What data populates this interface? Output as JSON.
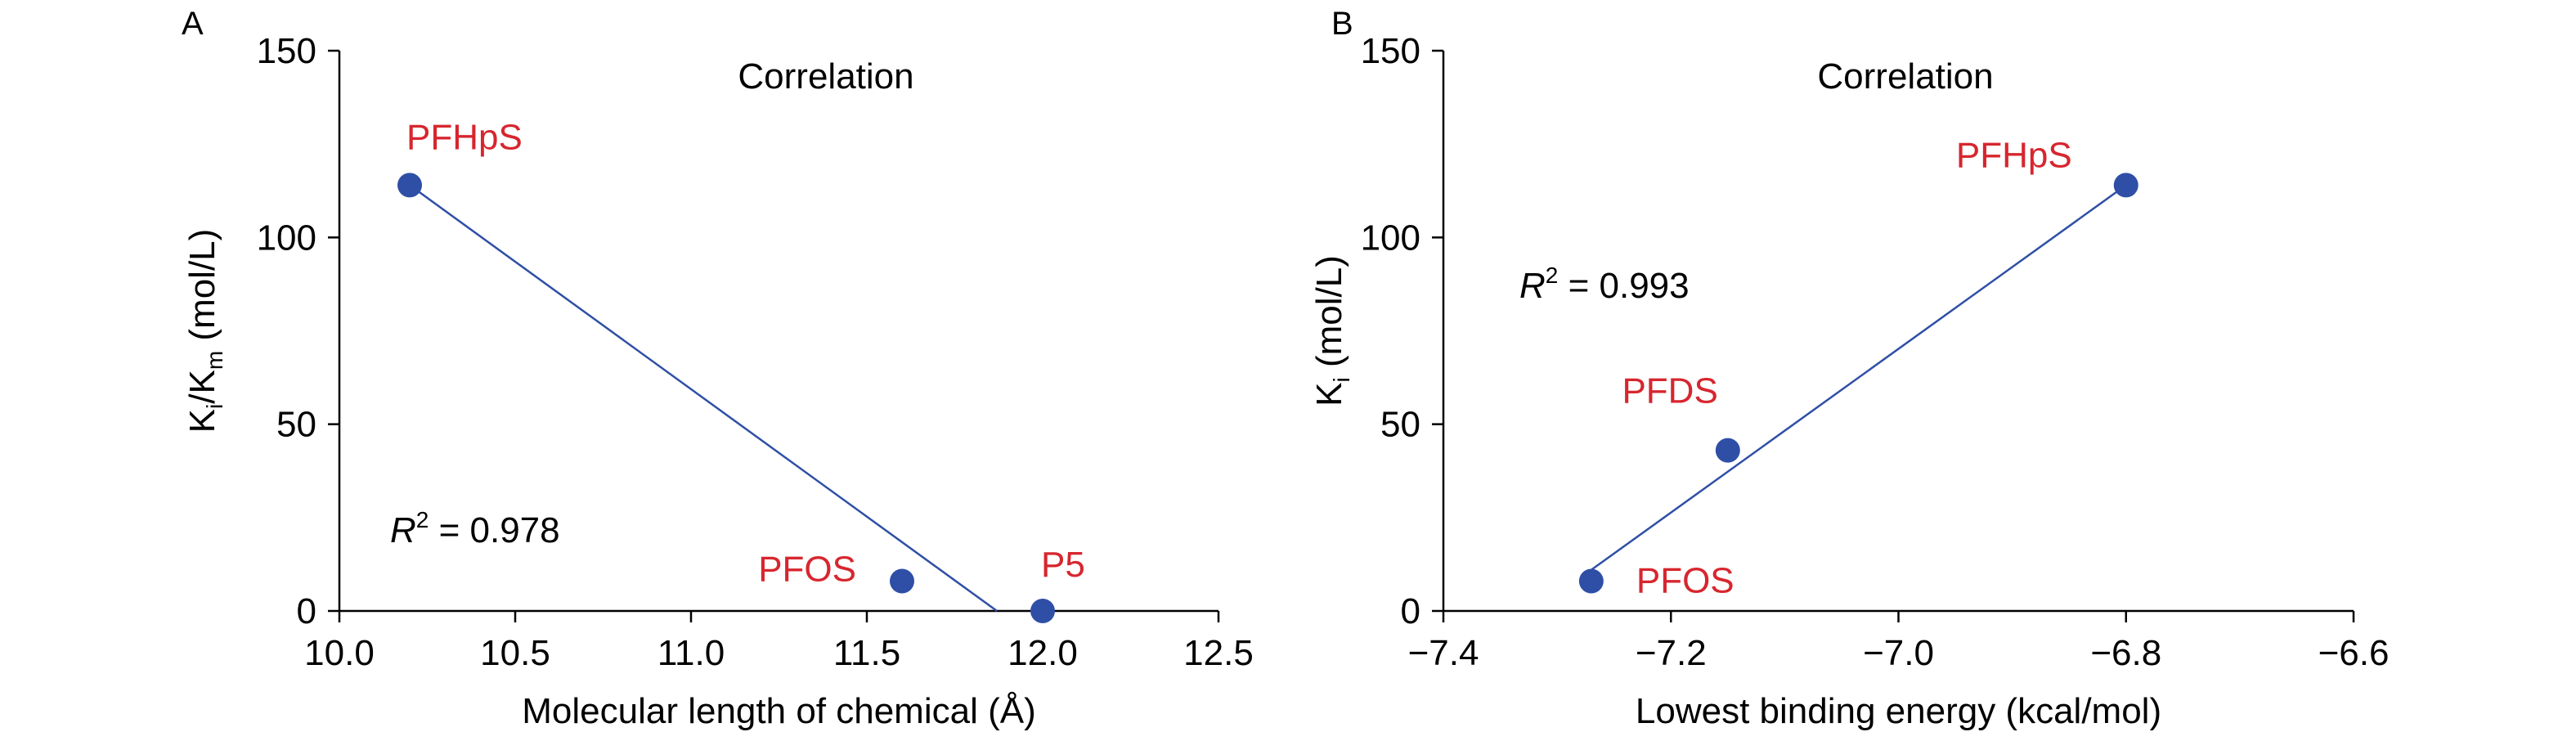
{
  "chart_data": [
    {
      "type": "scatter",
      "panel_label": "A",
      "title": "Correlation",
      "xlabel": "Molecular length of chemical (Å)",
      "ylabel": {
        "main": "K",
        "sub1": "i",
        "mid": "/K",
        "sub2": "m",
        "tail": " (mol/L)"
      },
      "xlim": [
        10.0,
        12.5
      ],
      "ylim": [
        0,
        150
      ],
      "xticks": [
        "10.0",
        "10.5",
        "11.0",
        "11.5",
        "12.0",
        "12.5"
      ],
      "xtick_values": [
        10.0,
        10.5,
        11.0,
        11.5,
        12.0,
        12.5
      ],
      "yticks": [
        "0",
        "50",
        "100",
        "150"
      ],
      "ytick_values": [
        0,
        50,
        100,
        150
      ],
      "points": [
        {
          "label": "PFHpS",
          "x": 10.2,
          "y": 114
        },
        {
          "label": "PFOS",
          "x": 11.6,
          "y": 8
        },
        {
          "label": "P5",
          "x": 12.0,
          "y": 0
        }
      ],
      "fit_line": {
        "x": [
          10.2,
          11.87
        ],
        "y": [
          114,
          0
        ]
      },
      "r2": {
        "symbol": "R",
        "sup": "2",
        "value": " = 0.978"
      },
      "marker_color": "#2f4fa6",
      "line_color": "#2f4fa6",
      "label_color": "#d7262e",
      "grid": false
    },
    {
      "type": "scatter",
      "panel_label": "B",
      "title": "Correlation",
      "xlabel": "Lowest binding energy (kcal/mol)",
      "ylabel": {
        "main": "K",
        "sub1": "i",
        "mid": "",
        "sub2": "",
        "tail": " (mol/L)"
      },
      "xlim": [
        -7.4,
        -6.6
      ],
      "ylim": [
        0,
        150
      ],
      "xticks": [
        "−7.4",
        "−7.2",
        "−7.0",
        "−6.8",
        "−6.6"
      ],
      "xtick_values": [
        -7.4,
        -7.2,
        -7.0,
        -6.8,
        -6.6
      ],
      "yticks": [
        "0",
        "50",
        "100",
        "150"
      ],
      "ytick_values": [
        0,
        50,
        100,
        150
      ],
      "points": [
        {
          "label": "PFOS",
          "x": -7.27,
          "y": 8
        },
        {
          "label": "PFDS",
          "x": -7.15,
          "y": 43
        },
        {
          "label": "PFHpS",
          "x": -6.8,
          "y": 114
        }
      ],
      "fit_line": {
        "x": [
          -7.27,
          -6.8
        ],
        "y": [
          11,
          114
        ]
      },
      "r2": {
        "symbol": "R",
        "sup": "2",
        "value": " = 0.993"
      },
      "marker_color": "#2f4fa6",
      "line_color": "#2f4fa6",
      "label_color": "#d7262e",
      "grid": false
    }
  ]
}
